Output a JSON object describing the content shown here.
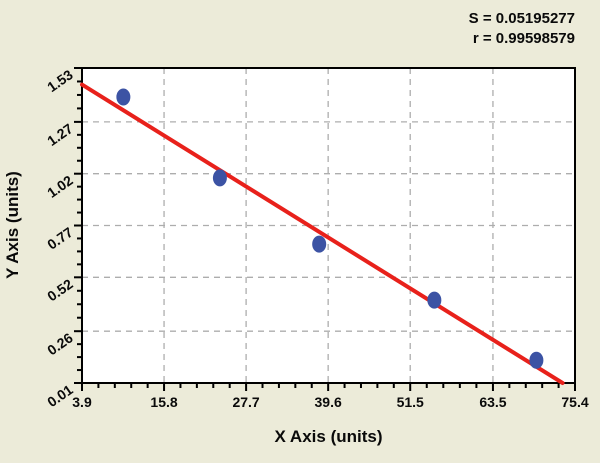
{
  "stats": {
    "s_line": "S = 0.05195277",
    "r_line": "r = 0.99598579"
  },
  "chart_data": {
    "type": "scatter",
    "title": "",
    "xlabel": "X Axis (units)",
    "ylabel": "Y Axis (units)",
    "xlim": [
      3.9,
      75.4
    ],
    "ylim": [
      0.01,
      1.53
    ],
    "x_tick_labels": [
      "3.9",
      "15.8",
      "27.7",
      "39.6",
      "51.5",
      "63.5",
      "75.4"
    ],
    "y_tick_labels": [
      "0.01",
      "0.26",
      "0.52",
      "0.77",
      "1.02",
      "1.27",
      "1.53"
    ],
    "x_minor_divisions": 5,
    "y_minor_divisions": 4,
    "grid": "dashed gridlines at interior major ticks, both axes",
    "legend": "none",
    "points": [
      {
        "x": 9.9,
        "y": 1.39
      },
      {
        "x": 23.9,
        "y": 1.0
      },
      {
        "x": 38.3,
        "y": 0.68
      },
      {
        "x": 55.0,
        "y": 0.41
      },
      {
        "x": 69.8,
        "y": 0.12
      }
    ],
    "fit_line": {
      "x1": 3.9,
      "y1": 1.45,
      "x2": 73.6,
      "y2": 0.01,
      "slope": -0.0207,
      "intercept": 1.531
    },
    "fit_stats": {
      "S": 0.05195277,
      "r": 0.99598579
    },
    "colors": {
      "background": "#ECEBD9",
      "plot_bg": "#FFFFFF",
      "point": "#3C53A4",
      "line": "#E8211B",
      "grid": "#ADADAD",
      "axis": "#000000",
      "text": "#0A0A0A"
    }
  }
}
